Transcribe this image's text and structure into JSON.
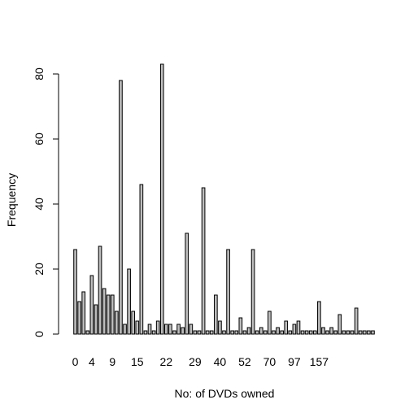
{
  "chart_data": {
    "type": "bar",
    "title": "",
    "xlabel": "No: of DVDs owned",
    "ylabel": "Frequency",
    "ylim": [
      0,
      85
    ],
    "yticks": [
      0,
      20,
      40,
      60,
      80
    ],
    "xtick_labels": [
      "0",
      "4",
      "9",
      "15",
      "22",
      "29",
      "40",
      "52",
      "70",
      "97",
      "157"
    ],
    "xtick_bar_index": [
      0,
      4,
      9,
      15,
      22,
      29,
      35,
      41,
      47,
      53,
      59
    ],
    "values": [
      26,
      10,
      13,
      1,
      18,
      9,
      27,
      14,
      12,
      12,
      7,
      78,
      3,
      20,
      7,
      4,
      46,
      1,
      3,
      1,
      4,
      83,
      3,
      3,
      1,
      3,
      2,
      31,
      3,
      1,
      1,
      45,
      1,
      1,
      12,
      4,
      1,
      26,
      1,
      1,
      5,
      1,
      2,
      26,
      1,
      2,
      1,
      7,
      1,
      2,
      1,
      4,
      1,
      3,
      4,
      1,
      1,
      1,
      1,
      10,
      2,
      1,
      2,
      1,
      6,
      1,
      1,
      1,
      8,
      1,
      1,
      1,
      1
    ],
    "bar_color": "#bebebe",
    "bar_stroke": "#000000",
    "grid": false,
    "legend": "none"
  }
}
